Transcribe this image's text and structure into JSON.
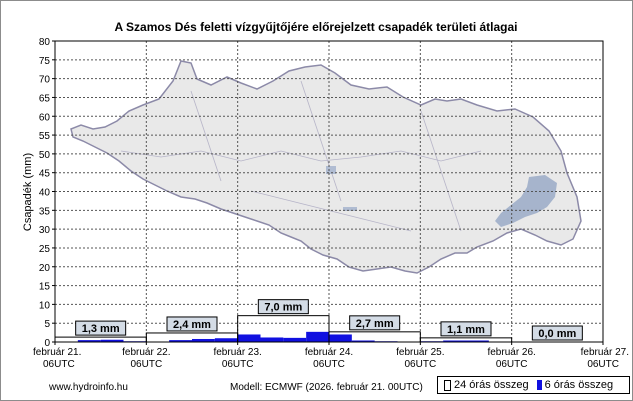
{
  "chart_data": {
    "type": "bar",
    "title": "A Szamos Dés feletti vízgyűjtőjére előrejelzett csapadék területi átlagai",
    "ylabel": "Csapadék (mm)",
    "ylim": [
      0,
      80
    ],
    "yticks": [
      0,
      5,
      10,
      15,
      20,
      25,
      30,
      35,
      40,
      45,
      50,
      55,
      60,
      65,
      70,
      75,
      80
    ],
    "x_ticks": [
      {
        "line1": "február 21.",
        "line2": "06UTC"
      },
      {
        "line1": "február 22.",
        "line2": "06UTC"
      },
      {
        "line1": "február 23.",
        "line2": "06UTC"
      },
      {
        "line1": "február 24.",
        "line2": "06UTC"
      },
      {
        "line1": "február 25.",
        "line2": "06UTC"
      },
      {
        "line1": "február 26.",
        "line2": "06UTC"
      },
      {
        "line1": "február 27.",
        "line2": "06UTC"
      }
    ],
    "daily": {
      "name": "24 órás összeg",
      "values": [
        1.3,
        2.4,
        7.0,
        2.7,
        1.1,
        0.0
      ],
      "labels": [
        "1,3 mm",
        "2,4 mm",
        "7,0 mm",
        "2,7 mm",
        "1,1 mm",
        "0,0 mm"
      ]
    },
    "sixhourly": {
      "name": "6 órás összeg",
      "values": [
        0.0,
        0.5,
        0.6,
        0.2,
        0.1,
        0.5,
        0.8,
        1.0,
        2.0,
        1.2,
        1.1,
        2.7,
        2.0,
        0.4,
        0.2,
        0.1,
        0.2,
        0.4,
        0.4,
        0.1,
        0.1,
        0.0,
        0.0,
        0.0
      ]
    },
    "grid": true,
    "legend": "bottom-right",
    "colors": {
      "daily_fill": "#ffffff",
      "daily_stroke": "#000000",
      "sixhourly_fill": "#1010e0",
      "label_fill": "#d4dce6",
      "grid": "#555555",
      "map_fill": "#e8e8e8",
      "map_outline": "#8c8aa8",
      "lake": "#a6b4cc"
    }
  },
  "footer": {
    "website": "www.hydroinfo.hu",
    "model": "Modell: ECMWF (2026. február 21. 00UTC)"
  }
}
